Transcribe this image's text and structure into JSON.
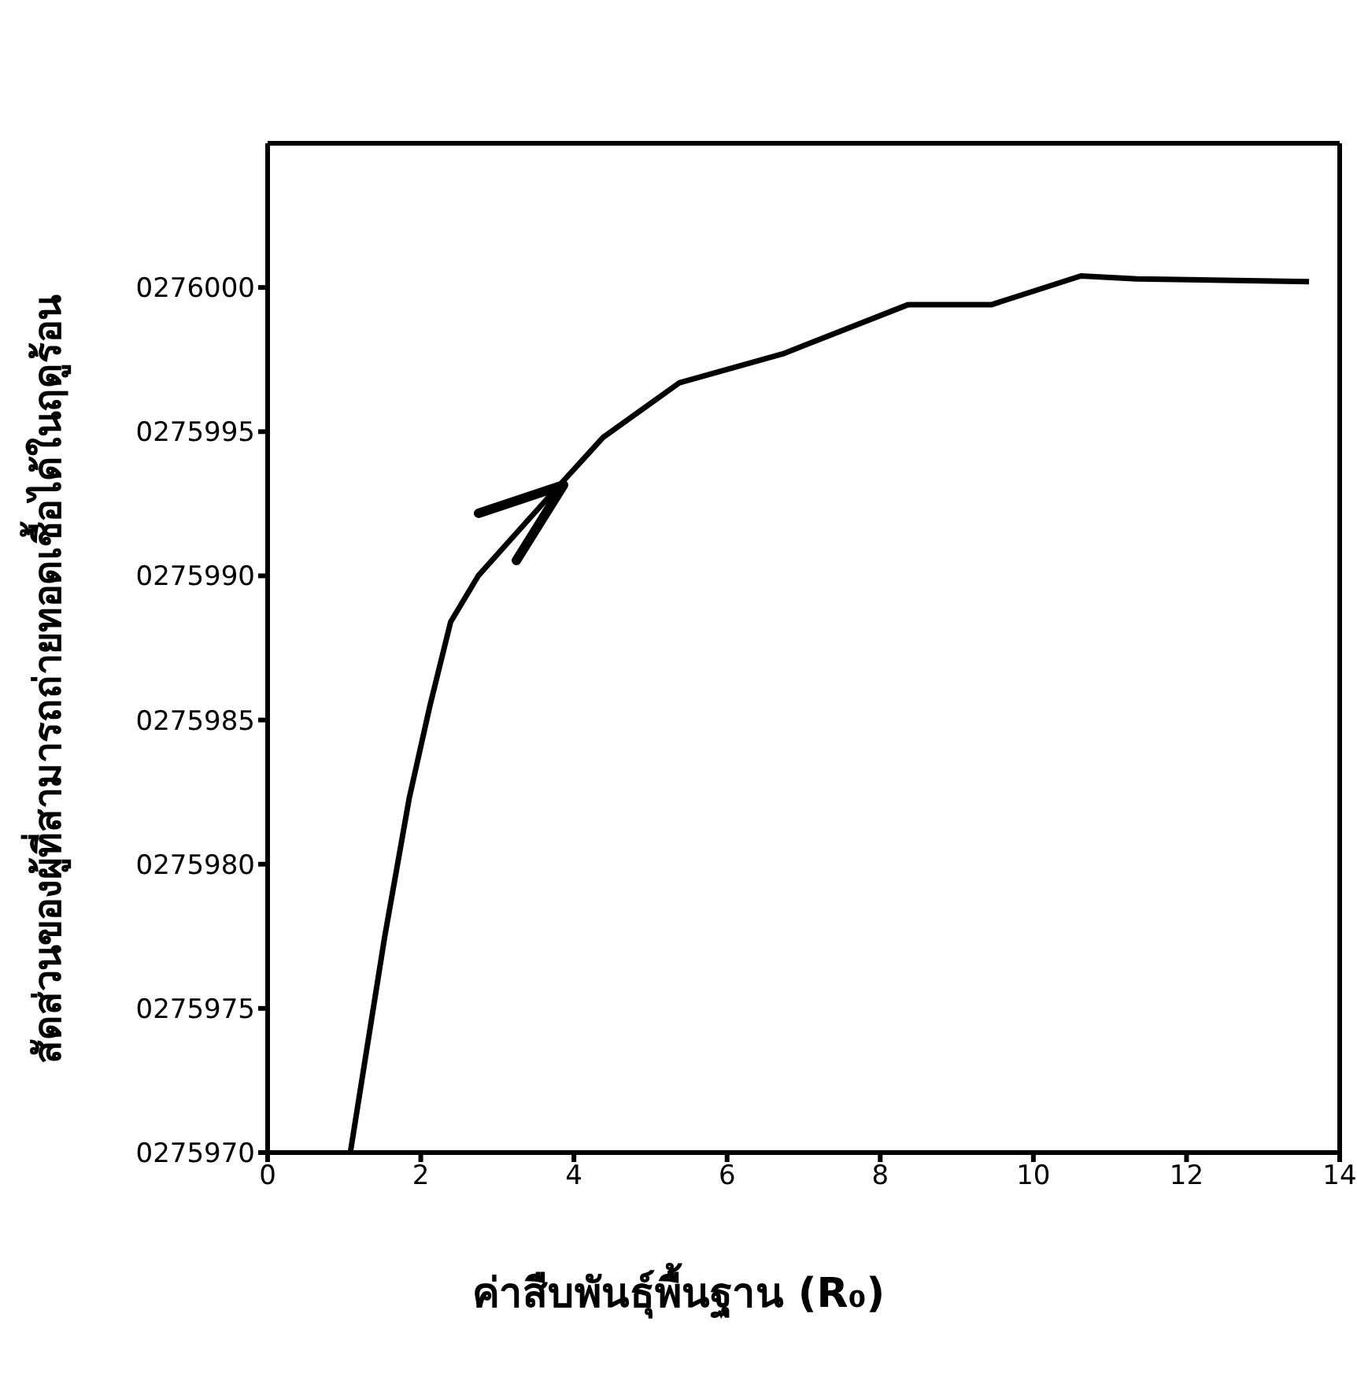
{
  "chart_data": {
    "type": "line",
    "xlabel": "ค่าสืบพันธุ์พื้นฐาน (R₀)",
    "ylabel": "สัดส่วนของผู้ที่สามารถถ่ายทอดเชื้อได้ในฤดูร้อน",
    "x": [
      1.08,
      1.53,
      1.85,
      2.12,
      2.39,
      2.75,
      3.66,
      4.38,
      5.38,
      6.73,
      8.36,
      9.45,
      10.62,
      11.35,
      13.6
    ],
    "series": [
      {
        "color": "#000000",
        "values": [
          275970,
          275977.5,
          275982.3,
          275985.5,
          275988.4,
          275990,
          275992.7,
          275994.8,
          275996.7,
          275997.7,
          275999.4,
          275999.4,
          276000.4,
          276000.3,
          276000.2
        ]
      }
    ],
    "xlim": [
      0,
      14
    ],
    "xticks": [
      0,
      2,
      4,
      6,
      8,
      10,
      12,
      14
    ],
    "ylim": [
      275970,
      276005
    ],
    "yticks": [
      {
        "value": 275970,
        "label": "0275970"
      },
      {
        "value": 275975,
        "label": "0275975"
      },
      {
        "value": 275980,
        "label": "0275980"
      },
      {
        "value": 275985,
        "label": "0275985"
      },
      {
        "value": 275990,
        "label": "0275990"
      },
      {
        "value": 275995,
        "label": "0275995"
      },
      {
        "value": 276000,
        "label": "0276000"
      }
    ],
    "grid": false,
    "legend": false,
    "marker": "none",
    "line_style": "solid"
  }
}
